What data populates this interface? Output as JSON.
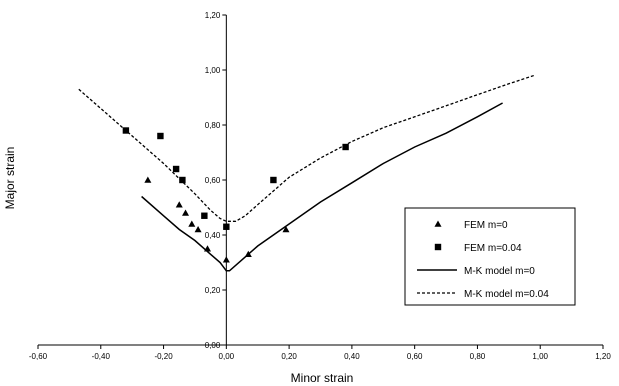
{
  "chart_data": {
    "type": "scatter",
    "title": "",
    "xlabel": "Minor strain",
    "ylabel": "Major strain",
    "xlim": [
      -0.6,
      1.2
    ],
    "ylim": [
      0.0,
      1.2
    ],
    "x_ticks": [
      -0.6,
      -0.4,
      -0.2,
      0.0,
      0.2,
      0.4,
      0.6,
      0.8,
      1.0,
      1.2
    ],
    "y_ticks": [
      0.0,
      0.2,
      0.4,
      0.6,
      0.8,
      1.0,
      1.2
    ],
    "x_tick_labels": [
      "-0,60",
      "-0,40",
      "-0,20",
      "0,00",
      "0,20",
      "0,40",
      "0,60",
      "0,80",
      "1,00",
      "1,20"
    ],
    "y_tick_labels": [
      "0,00",
      "0,20",
      "0,40",
      "0,60",
      "0,80",
      "1,00",
      "1,20"
    ],
    "grid": false,
    "legend_position": "right",
    "series": [
      {
        "name": "FEM m=0",
        "kind": "marker",
        "marker": "triangle",
        "color": "#000000",
        "points": [
          [
            -0.25,
            0.6
          ],
          [
            -0.15,
            0.51
          ],
          [
            -0.13,
            0.48
          ],
          [
            -0.11,
            0.44
          ],
          [
            -0.09,
            0.42
          ],
          [
            -0.06,
            0.35
          ],
          [
            0.0,
            0.31
          ],
          [
            0.07,
            0.33
          ],
          [
            0.19,
            0.42
          ]
        ]
      },
      {
        "name": "FEM m=0.04",
        "kind": "marker",
        "marker": "square",
        "color": "#000000",
        "points": [
          [
            -0.32,
            0.78
          ],
          [
            -0.21,
            0.76
          ],
          [
            -0.16,
            0.64
          ],
          [
            -0.14,
            0.6
          ],
          [
            -0.07,
            0.47
          ],
          [
            0.0,
            0.43
          ],
          [
            0.15,
            0.6
          ],
          [
            0.38,
            0.72
          ]
        ]
      },
      {
        "name": "M-K model m=0",
        "kind": "line",
        "dash": "solid",
        "color": "#000000",
        "points": [
          [
            -0.27,
            0.54
          ],
          [
            -0.2,
            0.47
          ],
          [
            -0.15,
            0.42
          ],
          [
            -0.1,
            0.38
          ],
          [
            -0.05,
            0.33
          ],
          [
            -0.02,
            0.3
          ],
          [
            0.0,
            0.27
          ],
          [
            0.01,
            0.27
          ],
          [
            0.05,
            0.31
          ],
          [
            0.1,
            0.36
          ],
          [
            0.2,
            0.44
          ],
          [
            0.3,
            0.52
          ],
          [
            0.4,
            0.59
          ],
          [
            0.5,
            0.66
          ],
          [
            0.6,
            0.72
          ],
          [
            0.7,
            0.77
          ],
          [
            0.8,
            0.83
          ],
          [
            0.88,
            0.88
          ]
        ]
      },
      {
        "name": "M-K model m=0.04",
        "kind": "line",
        "dash": "dashed",
        "color": "#000000",
        "points": [
          [
            -0.47,
            0.93
          ],
          [
            -0.4,
            0.86
          ],
          [
            -0.3,
            0.76
          ],
          [
            -0.2,
            0.66
          ],
          [
            -0.1,
            0.55
          ],
          [
            -0.05,
            0.49
          ],
          [
            -0.02,
            0.46
          ],
          [
            0.0,
            0.45
          ],
          [
            0.03,
            0.45
          ],
          [
            0.06,
            0.47
          ],
          [
            0.1,
            0.51
          ],
          [
            0.2,
            0.61
          ],
          [
            0.3,
            0.68
          ],
          [
            0.4,
            0.74
          ],
          [
            0.5,
            0.79
          ],
          [
            0.6,
            0.83
          ],
          [
            0.7,
            0.87
          ],
          [
            0.8,
            0.91
          ],
          [
            0.9,
            0.95
          ],
          [
            0.98,
            0.98
          ]
        ]
      }
    ]
  }
}
